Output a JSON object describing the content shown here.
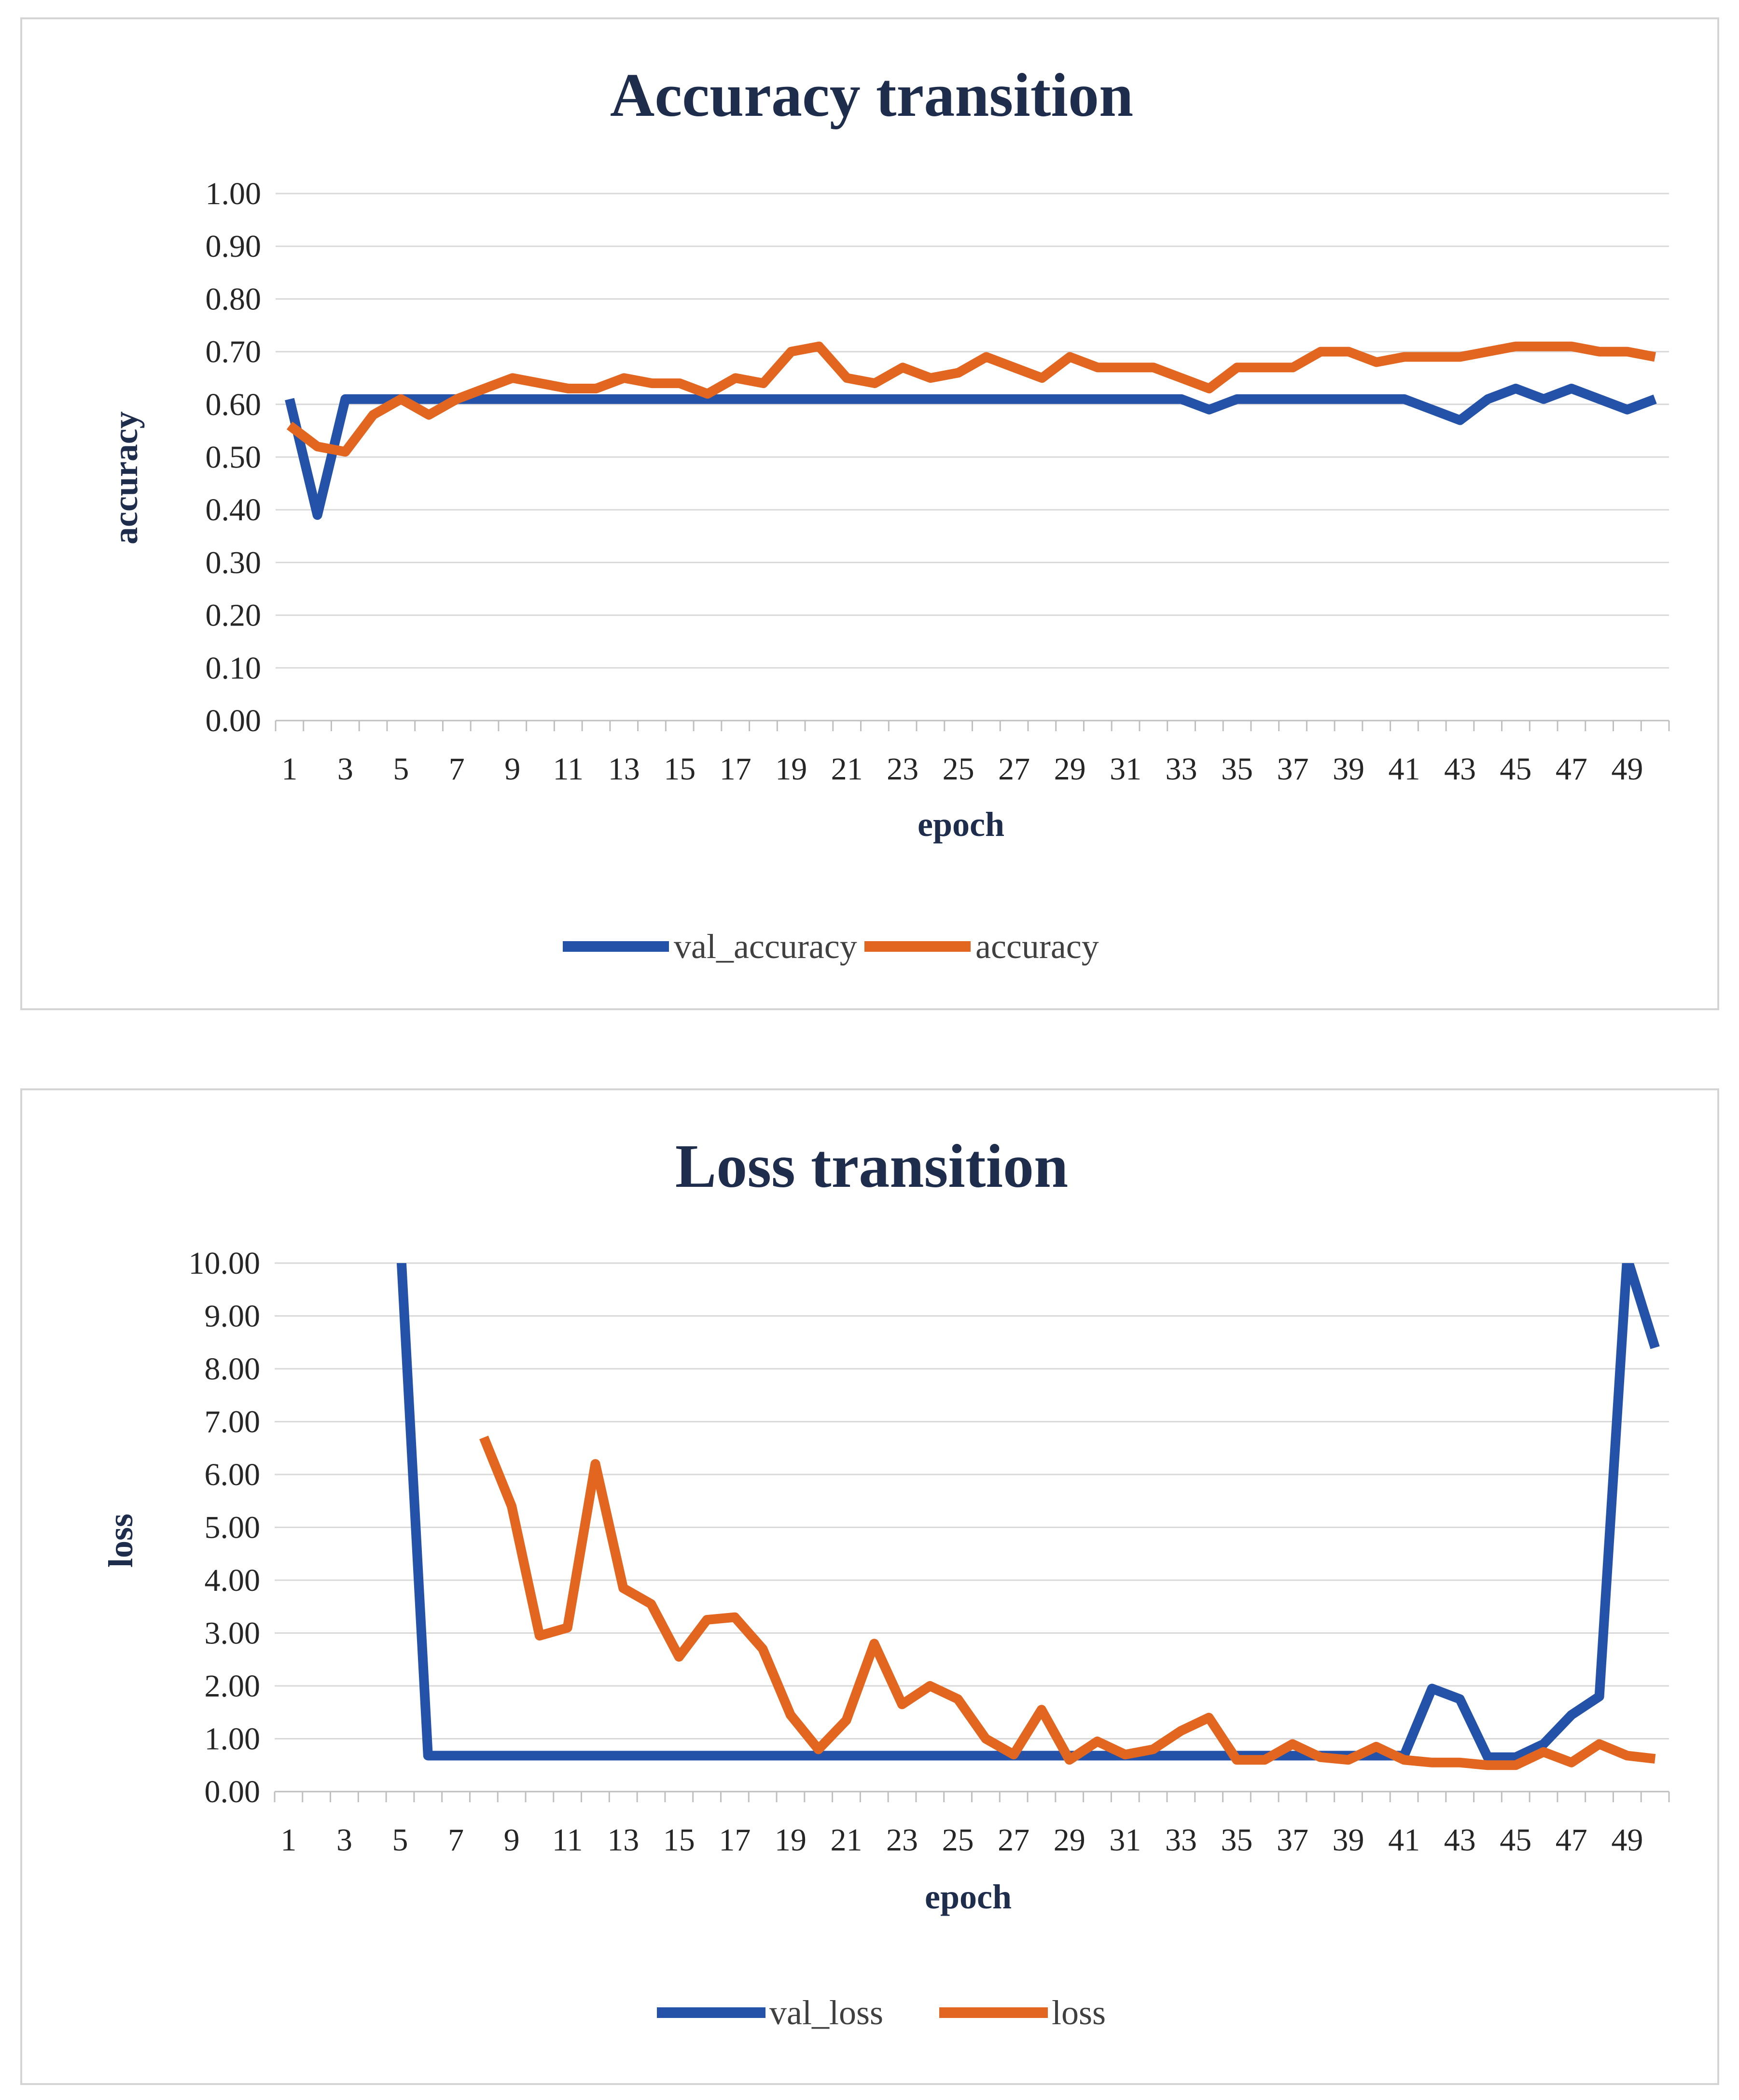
{
  "chart_data": [
    {
      "type": "line",
      "title": "Accuracy transition",
      "xlabel": "epoch",
      "ylabel": "accuracy",
      "ylim": [
        0,
        1
      ],
      "ytick_labels": [
        "0.00",
        "0.10",
        "0.20",
        "0.30",
        "0.40",
        "0.50",
        "0.60",
        "0.70",
        "0.80",
        "0.90",
        "1.00"
      ],
      "xtick_labels": [
        "1",
        "3",
        "5",
        "7",
        "9",
        "11",
        "13",
        "15",
        "17",
        "19",
        "21",
        "23",
        "25",
        "27",
        "29",
        "31",
        "33",
        "35",
        "37",
        "39",
        "41",
        "43",
        "45",
        "47",
        "49"
      ],
      "grid": true,
      "legend_position": "bottom",
      "x": [
        1,
        2,
        3,
        4,
        5,
        6,
        7,
        8,
        9,
        10,
        11,
        12,
        13,
        14,
        15,
        16,
        17,
        18,
        19,
        20,
        21,
        22,
        23,
        24,
        25,
        26,
        27,
        28,
        29,
        30,
        31,
        32,
        33,
        34,
        35,
        36,
        37,
        38,
        39,
        40,
        41,
        42,
        43,
        44,
        45,
        46,
        47,
        48,
        49,
        50
      ],
      "series": [
        {
          "name": "val_accuracy",
          "color": "#2452a8",
          "values": [
            0.61,
            0.39,
            0.61,
            0.61,
            0.61,
            0.61,
            0.61,
            0.61,
            0.61,
            0.61,
            0.61,
            0.61,
            0.61,
            0.61,
            0.61,
            0.61,
            0.61,
            0.61,
            0.61,
            0.61,
            0.61,
            0.61,
            0.61,
            0.61,
            0.61,
            0.61,
            0.61,
            0.61,
            0.61,
            0.61,
            0.61,
            0.61,
            0.61,
            0.59,
            0.61,
            0.61,
            0.61,
            0.61,
            0.61,
            0.61,
            0.61,
            0.59,
            0.57,
            0.61,
            0.63,
            0.61,
            0.63,
            0.61,
            0.59,
            0.61
          ]
        },
        {
          "name": "accuracy",
          "color": "#e2661f",
          "values": [
            0.56,
            0.52,
            0.51,
            0.58,
            0.61,
            0.58,
            0.61,
            0.63,
            0.65,
            0.64,
            0.63,
            0.63,
            0.65,
            0.64,
            0.64,
            0.62,
            0.65,
            0.64,
            0.7,
            0.71,
            0.65,
            0.64,
            0.67,
            0.65,
            0.66,
            0.69,
            0.67,
            0.65,
            0.69,
            0.67,
            0.67,
            0.67,
            0.65,
            0.63,
            0.67,
            0.67,
            0.67,
            0.7,
            0.7,
            0.68,
            0.69,
            0.69,
            0.69,
            0.7,
            0.71,
            0.71,
            0.71,
            0.7,
            0.7,
            0.69
          ]
        }
      ]
    },
    {
      "type": "line",
      "title": "Loss transition",
      "xlabel": "epoch",
      "ylabel": "loss",
      "ylim": [
        0,
        10
      ],
      "ytick_labels": [
        "0.00",
        "1.00",
        "2.00",
        "3.00",
        "4.00",
        "5.00",
        "6.00",
        "7.00",
        "8.00",
        "9.00",
        "10.00"
      ],
      "xtick_labels": [
        "1",
        "3",
        "5",
        "7",
        "9",
        "11",
        "13",
        "15",
        "17",
        "19",
        "21",
        "23",
        "25",
        "27",
        "29",
        "31",
        "33",
        "35",
        "37",
        "39",
        "41",
        "43",
        "45",
        "47",
        "49"
      ],
      "grid": true,
      "legend_position": "bottom",
      "x": [
        1,
        2,
        3,
        4,
        5,
        6,
        7,
        8,
        9,
        10,
        11,
        12,
        13,
        14,
        15,
        16,
        17,
        18,
        19,
        20,
        21,
        22,
        23,
        24,
        25,
        26,
        27,
        28,
        29,
        30,
        31,
        32,
        33,
        34,
        35,
        36,
        37,
        38,
        39,
        40,
        41,
        42,
        43,
        44,
        45,
        46,
        47,
        48,
        49,
        50
      ],
      "series": [
        {
          "name": "val_loss",
          "color": "#2452a8",
          "values": [
            null,
            null,
            null,
            null,
            10.5,
            0.68,
            0.68,
            0.68,
            0.68,
            0.68,
            0.68,
            0.68,
            0.68,
            0.68,
            0.68,
            0.68,
            0.68,
            0.68,
            0.68,
            0.68,
            0.68,
            0.68,
            0.68,
            0.68,
            0.68,
            0.68,
            0.68,
            0.68,
            0.68,
            0.68,
            0.68,
            0.68,
            0.68,
            0.68,
            0.68,
            0.68,
            0.68,
            0.68,
            0.68,
            0.68,
            0.68,
            1.95,
            1.75,
            0.65,
            0.65,
            0.9,
            1.45,
            1.8,
            10.1,
            8.4
          ]
        },
        {
          "name": "loss",
          "color": "#e2661f",
          "values": [
            null,
            null,
            null,
            null,
            null,
            null,
            null,
            6.7,
            5.4,
            2.95,
            3.1,
            6.2,
            3.85,
            3.55,
            2.55,
            3.25,
            3.3,
            2.7,
            1.45,
            0.8,
            1.35,
            2.8,
            1.65,
            2.0,
            1.75,
            1.0,
            0.7,
            1.55,
            0.6,
            0.95,
            0.7,
            0.8,
            1.15,
            1.4,
            0.6,
            0.6,
            0.9,
            0.65,
            0.6,
            0.85,
            0.6,
            0.55,
            0.55,
            0.5,
            0.5,
            0.75,
            0.55,
            0.9,
            0.68,
            0.62
          ]
        }
      ]
    }
  ]
}
